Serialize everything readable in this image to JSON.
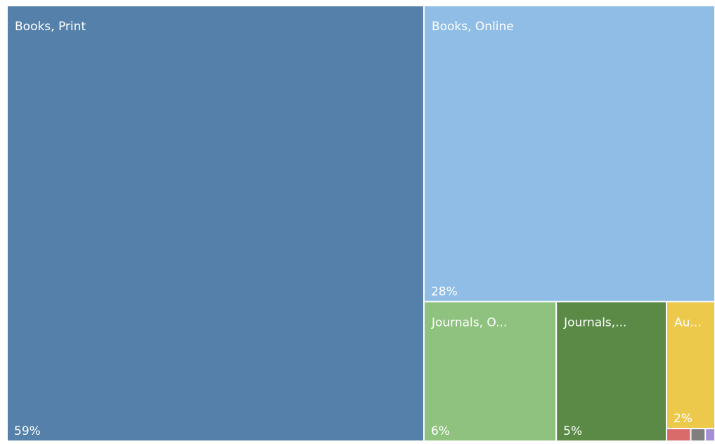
{
  "chart_data": {
    "type": "treemap",
    "categories": [
      "Books, Print",
      "Books, Online",
      "Journals, O...",
      "Journals,...",
      "Au...",
      null,
      null,
      null
    ],
    "values": [
      59,
      28,
      6,
      5,
      2,
      0.1,
      0.06,
      0.04
    ],
    "value_labels": [
      "59%",
      "28%",
      "6%",
      "5%",
      "2%",
      null,
      null,
      null
    ],
    "colors": [
      "#5580aa",
      "#8fbde6",
      "#8fc27e",
      "#5a8a45",
      "#ecc94b",
      "#d96b6b",
      "#7f7f7f",
      "#a78fd6"
    ]
  }
}
